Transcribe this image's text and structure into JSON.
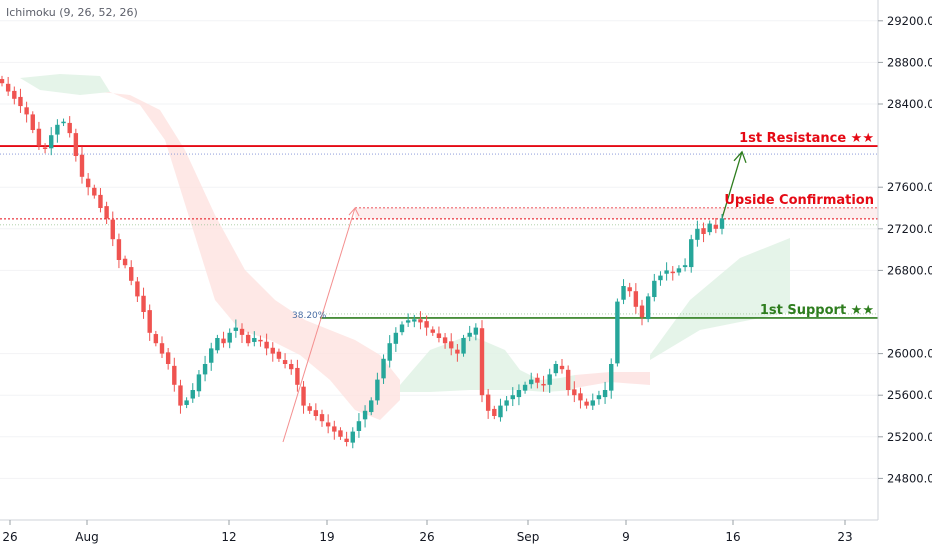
{
  "indicator": {
    "label": "Ichimoku (9, 26, 52, 26)"
  },
  "colors": {
    "up": "#26a69a",
    "down": "#ef5350",
    "resistance": "#e50914",
    "support": "#2e7d1e",
    "cloud_bear": "#fde0de",
    "cloud_bull": "#dff1e3",
    "arrow_up_dark": "#2e7d1e",
    "arrow_light": "#f48f8f"
  },
  "chart_data": {
    "type": "candlestick",
    "y_range": [
      24400,
      29400
    ],
    "y_ticks": [
      "29200.0",
      "28800.0",
      "28400.0",
      "27600.0",
      "27200.0",
      "26800.0",
      "26000.0",
      "25600.0",
      "25200.0",
      "24800.0"
    ],
    "x_ticks": [
      "26",
      "Aug",
      "5",
      "12",
      "19",
      "26",
      "Sep",
      "9",
      "16",
      "23"
    ],
    "price_levels": [
      {
        "name": "1st Resistance ★★",
        "value": "27995.4",
        "role": "resistance"
      },
      {
        "name": "Upside Confirmation",
        "value": "27400.4",
        "role": "resistance"
      },
      {
        "name": "",
        "value": "27296.0",
        "role": "resistance"
      },
      {
        "name": "1st Support ★★",
        "value": "26342.9",
        "role": "support"
      }
    ],
    "fib_label": "38.20%",
    "closes": [
      28600,
      28520,
      28450,
      28380,
      28300,
      28150,
      28000,
      27980,
      28100,
      28200,
      28230,
      28120,
      27900,
      27700,
      27600,
      27520,
      27400,
      27300,
      27100,
      26900,
      26850,
      26700,
      26550,
      26400,
      26200,
      26100,
      26000,
      25900,
      25700,
      25500,
      25550,
      25650,
      25800,
      25900,
      26050,
      26150,
      26100,
      26200,
      26250,
      26180,
      26100,
      26150,
      26120,
      26050,
      26000,
      25950,
      25900,
      25850,
      25700,
      25500,
      25450,
      25400,
      25350,
      25300,
      25250,
      25200,
      25150,
      25250,
      25350,
      25450,
      25550,
      25750,
      25950,
      26100,
      26200,
      26280,
      26320,
      26330,
      26300,
      26250,
      26200,
      26150,
      26100,
      26050,
      26000,
      26150,
      26200,
      26250,
      25600,
      25450,
      25400,
      25500,
      25550,
      25600,
      25650,
      25700,
      25750,
      25720,
      25700,
      25800,
      25900,
      25850,
      25650,
      25600,
      25550,
      25500,
      25550,
      25600,
      25650,
      25900,
      26500,
      26650,
      26600,
      26450,
      26350,
      26550,
      26700,
      26750,
      26800,
      26780,
      26820,
      26850,
      27100,
      27200,
      27150,
      27250,
      27200,
      27300
    ]
  }
}
